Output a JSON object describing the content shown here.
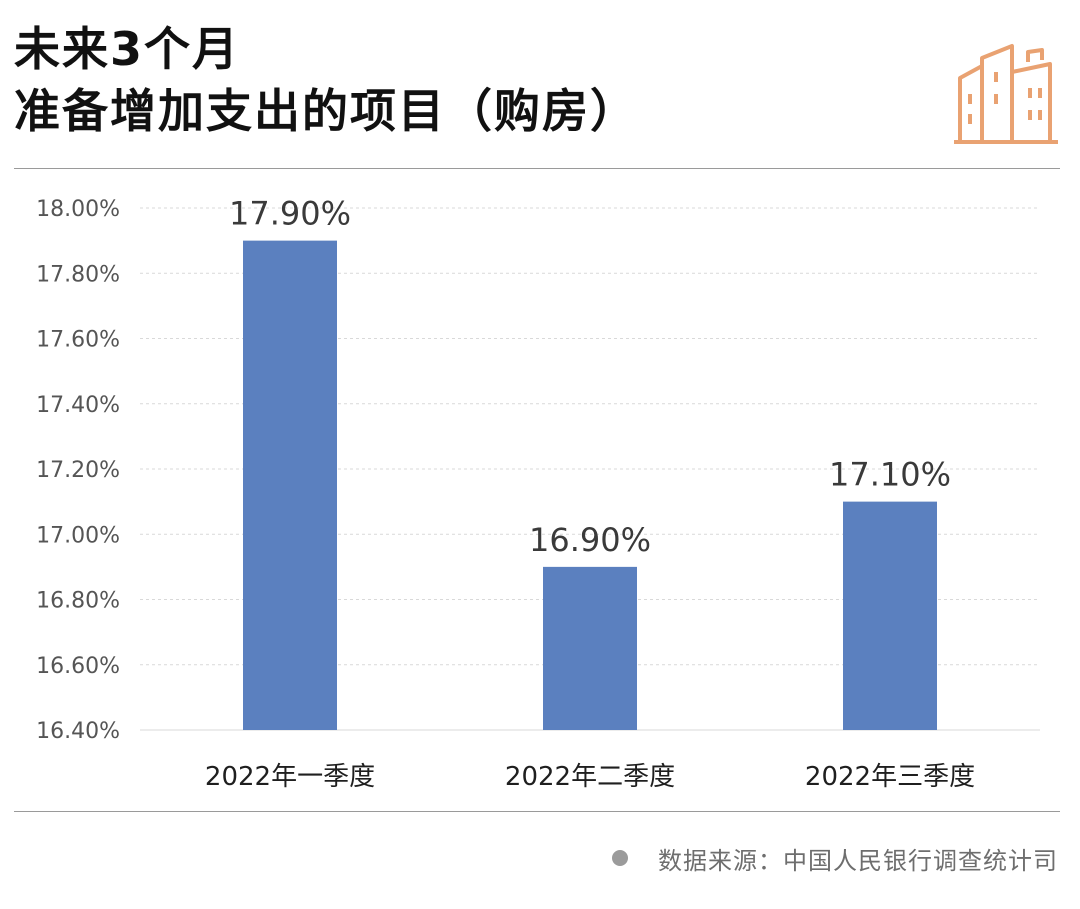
{
  "header": {
    "title_line1": "未来3个月",
    "title_line2": "准备增加支出的项目（购房）",
    "icon": "building-icon"
  },
  "chart_data": {
    "type": "bar",
    "categories": [
      "2022年一季度",
      "2022年二季度",
      "2022年三季度"
    ],
    "values": [
      17.9,
      16.9,
      17.1
    ],
    "value_labels": [
      "17.90%",
      "16.90%",
      "17.10%"
    ],
    "ylim": [
      16.4,
      18.0
    ],
    "yticks": [
      16.4,
      16.6,
      16.8,
      17.0,
      17.2,
      17.4,
      17.6,
      17.8,
      18.0
    ],
    "ytick_labels": [
      "16.40%",
      "16.60%",
      "16.80%",
      "17.00%",
      "17.20%",
      "17.40%",
      "17.60%",
      "17.80%",
      "18.00%"
    ],
    "grid": true,
    "bar_color": "#5b80bf"
  },
  "footer": {
    "source": "数据来源：中国人民银行调查统计司"
  },
  "colors": {
    "icon": "#e9a272",
    "grid": "#d9d9d9",
    "axis_text": "#555555",
    "source_text": "#6e6e6e"
  }
}
